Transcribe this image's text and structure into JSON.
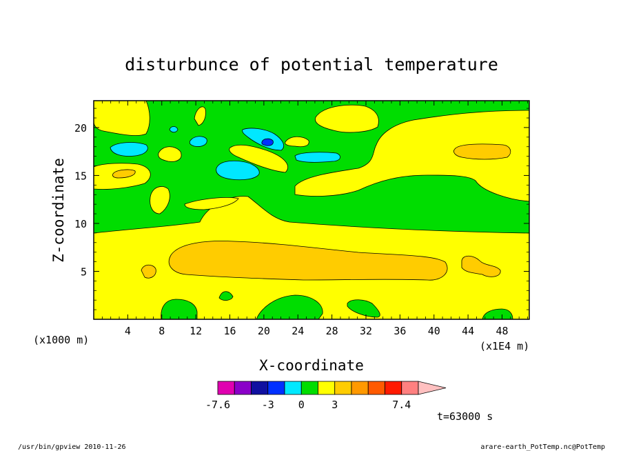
{
  "chart_data": {
    "type": "heatmap",
    "title": "disturbunce of potential temperature",
    "xlabel": "X-coordinate",
    "ylabel": "Z-coordinate",
    "x_unit_left": "(x1000 m)",
    "x_unit_right": "(x1E4 m)",
    "xlim": [
      0,
      51.2
    ],
    "ylim": [
      0,
      22.8
    ],
    "x_ticks": [
      "4",
      "8",
      "12",
      "16",
      "20",
      "24",
      "28",
      "32",
      "36",
      "40",
      "44",
      "48"
    ],
    "y_ticks": [
      "5",
      "10",
      "15",
      "20"
    ],
    "x_tick_values": [
      4,
      8,
      12,
      16,
      20,
      24,
      28,
      32,
      36,
      40,
      44,
      48
    ],
    "y_tick_values": [
      5,
      10,
      15,
      20
    ],
    "background_level_color": "#00dd00",
    "colorbar": {
      "colors": [
        "#e000b0",
        "#8a00c8",
        "#1010a0",
        "#0030ff",
        "#00e8ff",
        "#00dd00",
        "#ffff00",
        "#ffcc00",
        "#ff9900",
        "#ff5a00",
        "#ff1a00",
        "#ff8080",
        "#ffc0c0"
      ],
      "labels": [
        {
          "text": "-7.6",
          "index": 0
        },
        {
          "text": "-3",
          "index": 3
        },
        {
          "text": "0",
          "index": 5
        },
        {
          "text": "3",
          "index": 7
        },
        {
          "text": "7.4",
          "index": 11
        }
      ]
    },
    "regions": [
      {
        "level": "positive-low",
        "color": "#ffff00"
      },
      {
        "level": "positive-mid",
        "color": "#ffcc00"
      },
      {
        "level": "negative-low",
        "color": "#00e8ff"
      },
      {
        "level": "negative-mid",
        "color": "#0030ff"
      }
    ],
    "time_label": "t=63000 s"
  },
  "footer": {
    "left": "/usr/bin/gpview  2010-11-26",
    "right": "arare-earth_PotTemp.nc@PotTemp"
  }
}
